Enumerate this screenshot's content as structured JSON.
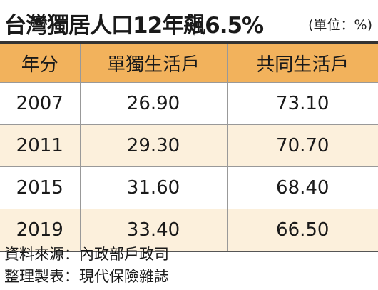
{
  "header": {
    "title": "台灣獨居人口12年飆6.5%",
    "unit": "(單位：%)"
  },
  "table": {
    "columns": [
      "年分",
      "單獨生活戶",
      "共同生活戶"
    ],
    "rows": [
      [
        "2007",
        "26.90",
        "73.10"
      ],
      [
        "2011",
        "29.30",
        "70.70"
      ],
      [
        "2015",
        "31.60",
        "68.40"
      ],
      [
        "2019",
        "33.40",
        "66.50"
      ]
    ]
  },
  "footer": {
    "source": "資料來源：內政部戶政司",
    "compiled": "整理製表：現代保險雜誌"
  }
}
